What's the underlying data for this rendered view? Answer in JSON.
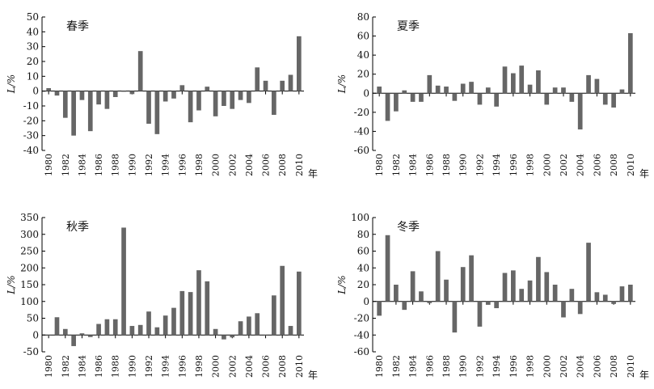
{
  "chart_data": [
    {
      "type": "bar",
      "title": "春季",
      "ylabel": "L/%",
      "xlabel": "年",
      "xticks": [
        1980,
        1982,
        1984,
        1986,
        1988,
        1990,
        1992,
        1994,
        1996,
        1998,
        2000,
        2002,
        2004,
        2006,
        2008,
        2010
      ],
      "yticks": [
        -40,
        -30,
        -20,
        -10,
        0,
        10,
        20,
        30,
        40,
        50
      ],
      "ylim": [
        -40,
        50
      ],
      "grid": false,
      "bar_color": "#666666",
      "series": [
        {
          "x": [
            1980,
            1981,
            1982,
            1983,
            1984,
            1985,
            1986,
            1987,
            1988,
            1989,
            1990,
            1991,
            1992,
            1993,
            1994,
            1995,
            1996,
            1997,
            1998,
            1999,
            2000,
            2001,
            2002,
            2003,
            2004,
            2005,
            2006,
            2007,
            2008,
            2009,
            2010
          ],
          "values": [
            2,
            -3,
            -18,
            -30,
            -6,
            -27,
            -9,
            -12,
            -4,
            0,
            -2,
            27,
            -22,
            -29,
            -7,
            -5,
            4,
            -21,
            -13,
            3,
            -17,
            -10,
            -12,
            -6,
            -8,
            16,
            7,
            -16,
            7,
            11,
            37
          ]
        }
      ]
    },
    {
      "type": "bar",
      "title": "夏季",
      "ylabel": "L/%",
      "xlabel": "年",
      "xticks": [
        1980,
        1982,
        1984,
        1986,
        1988,
        1990,
        1992,
        1994,
        1996,
        1998,
        2000,
        2002,
        2004,
        2006,
        2008,
        2010
      ],
      "yticks": [
        -60,
        -40,
        -20,
        0,
        20,
        40,
        60,
        80
      ],
      "ylim": [
        -60,
        80
      ],
      "grid": false,
      "bar_color": "#666666",
      "series": [
        {
          "x": [
            1980,
            1981,
            1982,
            1983,
            1984,
            1985,
            1986,
            1987,
            1988,
            1989,
            1990,
            1991,
            1992,
            1993,
            1994,
            1995,
            1996,
            1997,
            1998,
            1999,
            2000,
            2001,
            2002,
            2003,
            2004,
            2005,
            2006,
            2007,
            2008,
            2009,
            2010
          ],
          "values": [
            7,
            -29,
            -19,
            3,
            -9,
            -9,
            19,
            8,
            7,
            -8,
            10,
            12,
            -12,
            6,
            -14,
            28,
            21,
            29,
            9,
            24,
            -12,
            6,
            6,
            -9,
            -38,
            19,
            15,
            -12,
            -15,
            4,
            63
          ]
        }
      ]
    },
    {
      "type": "bar",
      "title": "秋季",
      "ylabel": "L/%",
      "xlabel": "年",
      "xticks": [
        1980,
        1982,
        1984,
        1986,
        1988,
        1990,
        1992,
        1994,
        1996,
        1998,
        2000,
        2002,
        2004,
        2006,
        2008,
        2010
      ],
      "yticks": [
        -50,
        0,
        50,
        100,
        150,
        200,
        250,
        300,
        350
      ],
      "ylim": [
        -50,
        350
      ],
      "grid": false,
      "bar_color": "#666666",
      "series": [
        {
          "x": [
            1980,
            1981,
            1982,
            1983,
            1984,
            1985,
            1986,
            1987,
            1988,
            1989,
            1990,
            1991,
            1992,
            1993,
            1994,
            1995,
            1996,
            1997,
            1998,
            1999,
            2000,
            2001,
            2002,
            2003,
            2004,
            2005,
            2006,
            2007,
            2008,
            2009,
            2010
          ],
          "values": [
            0,
            53,
            18,
            -33,
            5,
            -6,
            33,
            47,
            47,
            320,
            27,
            30,
            70,
            23,
            58,
            81,
            131,
            128,
            193,
            160,
            18,
            -13,
            -7,
            41,
            55,
            65,
            0,
            118,
            206,
            27,
            189
          ]
        }
      ]
    },
    {
      "type": "bar",
      "title": "冬季",
      "ylabel": "L/%",
      "xlabel": "年",
      "xticks": [
        1980,
        1982,
        1984,
        1986,
        1988,
        1990,
        1992,
        1994,
        1996,
        1998,
        2000,
        2002,
        2004,
        2006,
        2008,
        2010
      ],
      "yticks": [
        -60,
        -40,
        -20,
        0,
        20,
        40,
        60,
        80,
        100
      ],
      "ylim": [
        -60,
        100
      ],
      "grid": false,
      "bar_color": "#666666",
      "series": [
        {
          "x": [
            1980,
            1981,
            1982,
            1983,
            1984,
            1985,
            1986,
            1987,
            1988,
            1989,
            1990,
            1991,
            1992,
            1993,
            1994,
            1995,
            1996,
            1997,
            1998,
            1999,
            2000,
            2001,
            2002,
            2003,
            2004,
            2005,
            2006,
            2007,
            2008,
            2009,
            2010
          ],
          "values": [
            -17,
            79,
            20,
            -10,
            36,
            12,
            -2,
            60,
            26,
            -37,
            41,
            55,
            -30,
            -4,
            -8,
            34,
            37,
            15,
            25,
            53,
            35,
            20,
            -19,
            15,
            -15,
            70,
            11,
            8,
            -3,
            18,
            20
          ]
        }
      ]
    }
  ]
}
